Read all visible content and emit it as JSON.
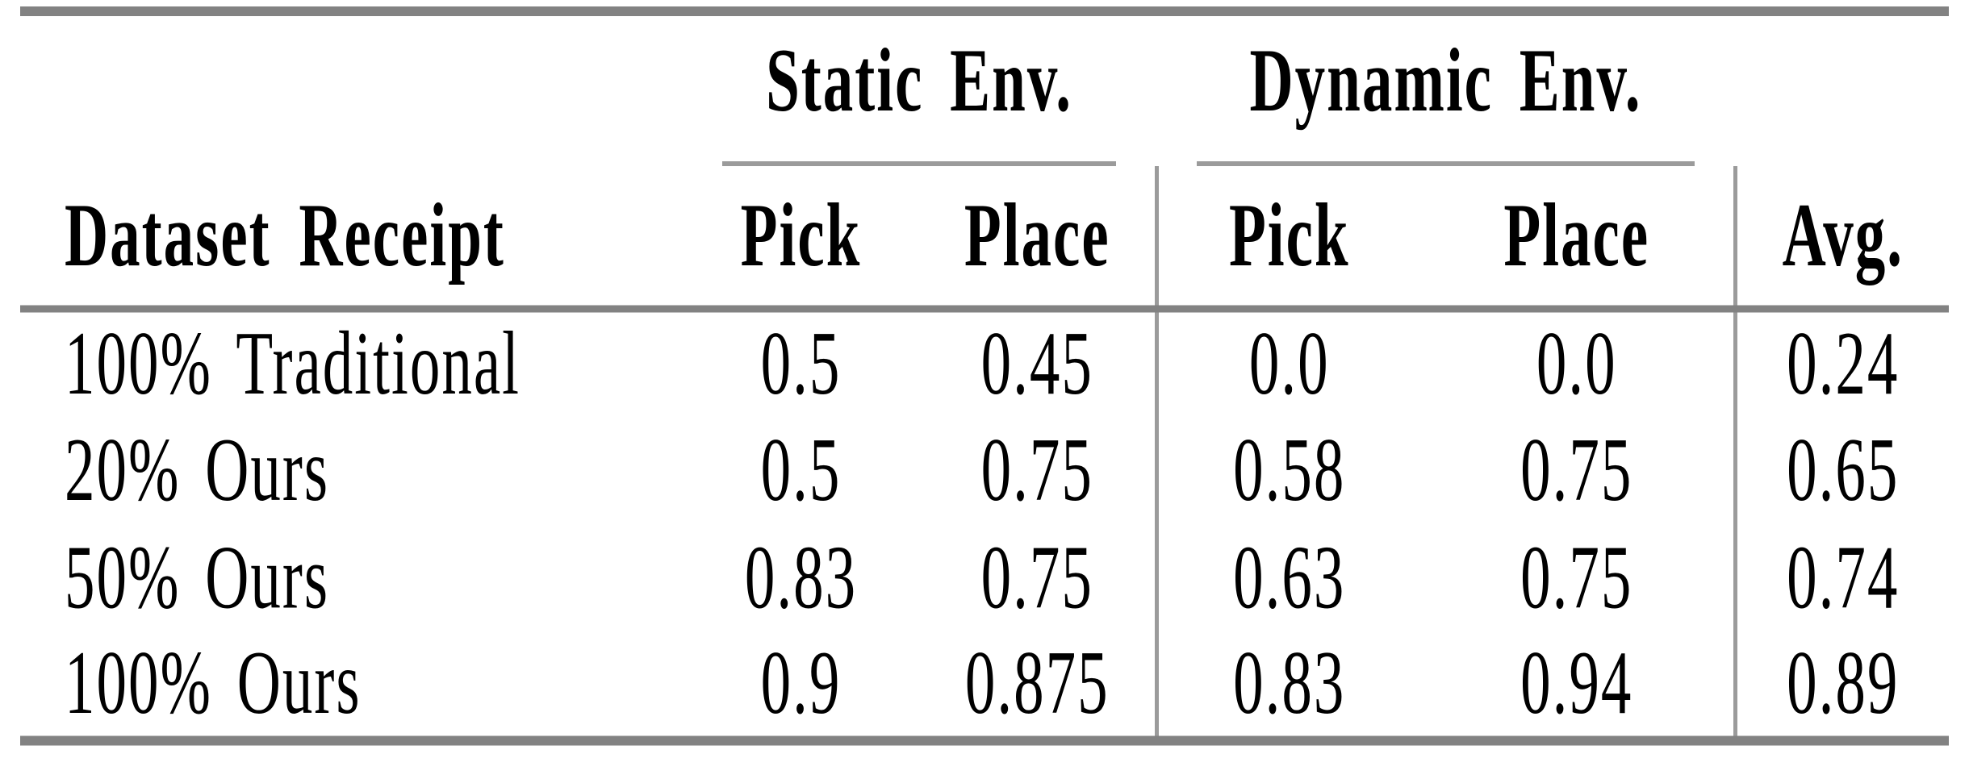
{
  "colors": {
    "rule_thick": "#828282",
    "rule_thin": "#9b9b9b",
    "text": "#000000",
    "bg": "#ffffff"
  },
  "table": {
    "group_headers": [
      {
        "label": "Static Env."
      },
      {
        "label": "Dynamic Env."
      }
    ],
    "column_headers": {
      "dataset": "Dataset Receipt",
      "static_pick": "Pick",
      "static_place": "Place",
      "dynamic_pick": "Pick",
      "dynamic_place": "Place",
      "avg": "Avg."
    },
    "rows": [
      {
        "label": "100% Traditional",
        "static_pick": "0.5",
        "static_place": "0.45",
        "dynamic_pick": "0.0",
        "dynamic_place": "0.0",
        "avg": "0.24"
      },
      {
        "label": "20% Ours",
        "static_pick": "0.5",
        "static_place": "0.75",
        "dynamic_pick": "0.58",
        "dynamic_place": "0.75",
        "avg": "0.65"
      },
      {
        "label": "50% Ours",
        "static_pick": "0.83",
        "static_place": "0.75",
        "dynamic_pick": "0.63",
        "dynamic_place": "0.75",
        "avg": "0.74"
      },
      {
        "label": "100% Ours",
        "static_pick": "0.9",
        "static_place": "0.875",
        "dynamic_pick": "0.83",
        "dynamic_place": "0.94",
        "avg": "0.89"
      }
    ]
  },
  "chart_data": {
    "type": "table",
    "title": "",
    "column_groups": [
      "",
      "Static Env.",
      "Static Env.",
      "Dynamic Env.",
      "Dynamic Env.",
      ""
    ],
    "columns": [
      "Dataset Receipt",
      "Pick",
      "Place",
      "Pick",
      "Place",
      "Avg."
    ],
    "rows": [
      [
        "100% Traditional",
        0.5,
        0.45,
        0.0,
        0.0,
        0.24
      ],
      [
        "20% Ours",
        0.5,
        0.75,
        0.58,
        0.75,
        0.65
      ],
      [
        "50% Ours",
        0.83,
        0.75,
        0.63,
        0.75,
        0.74
      ],
      [
        "100% Ours",
        0.9,
        0.875,
        0.83,
        0.94,
        0.89
      ]
    ]
  }
}
